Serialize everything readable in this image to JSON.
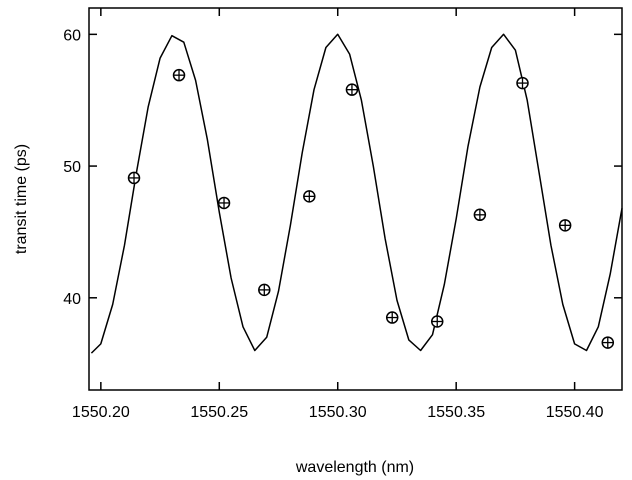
{
  "chart_data": {
    "type": "scatter",
    "title": "",
    "xlabel": "wavelength (nm)",
    "ylabel": "transit time (ps)",
    "xlim": [
      1550.195,
      1550.42
    ],
    "ylim": [
      33,
      62
    ],
    "grid": false,
    "legend": "none",
    "x_ticks": [
      1550.2,
      1550.25,
      1550.3,
      1550.35,
      1550.4
    ],
    "x_tick_labels": [
      "1550.20",
      "1550.25",
      "1550.30",
      "1550.35",
      "1550.40"
    ],
    "y_ticks": [
      40,
      50,
      60
    ],
    "y_tick_labels": [
      "40",
      "50",
      "60"
    ],
    "series": [
      {
        "kind": "line",
        "color": "#000000",
        "x": [
          1550.196,
          1550.2,
          1550.205,
          1550.21,
          1550.215,
          1550.22,
          1550.225,
          1550.23,
          1550.235,
          1550.24,
          1550.245,
          1550.25,
          1550.255,
          1550.26,
          1550.265,
          1550.27,
          1550.275,
          1550.28,
          1550.285,
          1550.29,
          1550.295,
          1550.3,
          1550.305,
          1550.31,
          1550.315,
          1550.32,
          1550.325,
          1550.33,
          1550.335,
          1550.34,
          1550.345,
          1550.35,
          1550.355,
          1550.36,
          1550.365,
          1550.37,
          1550.375,
          1550.38,
          1550.385,
          1550.39,
          1550.395,
          1550.4,
          1550.405,
          1550.41,
          1550.415,
          1550.42
        ],
        "y": [
          35.8,
          36.5,
          39.5,
          44.0,
          49.5,
          54.5,
          58.2,
          59.9,
          59.4,
          56.5,
          52.0,
          46.5,
          41.5,
          37.8,
          36.0,
          37.0,
          40.5,
          45.5,
          51.0,
          55.8,
          59.0,
          60.0,
          58.5,
          55.0,
          50.0,
          44.5,
          39.8,
          36.8,
          36.0,
          37.2,
          41.0,
          46.0,
          51.5,
          56.0,
          59.0,
          60.0,
          58.8,
          55.0,
          49.5,
          44.0,
          39.5,
          36.5,
          36.0,
          37.8,
          41.8,
          46.8
        ]
      },
      {
        "kind": "scatter",
        "marker": "circled-plus",
        "color": "#000000",
        "x": [
          1550.214,
          1550.233,
          1550.252,
          1550.269,
          1550.288,
          1550.306,
          1550.323,
          1550.342,
          1550.36,
          1550.378,
          1550.396,
          1550.414
        ],
        "y": [
          49.1,
          56.9,
          47.2,
          40.6,
          47.7,
          55.8,
          38.5,
          38.2,
          46.3,
          56.3,
          45.5,
          36.6
        ]
      }
    ]
  }
}
